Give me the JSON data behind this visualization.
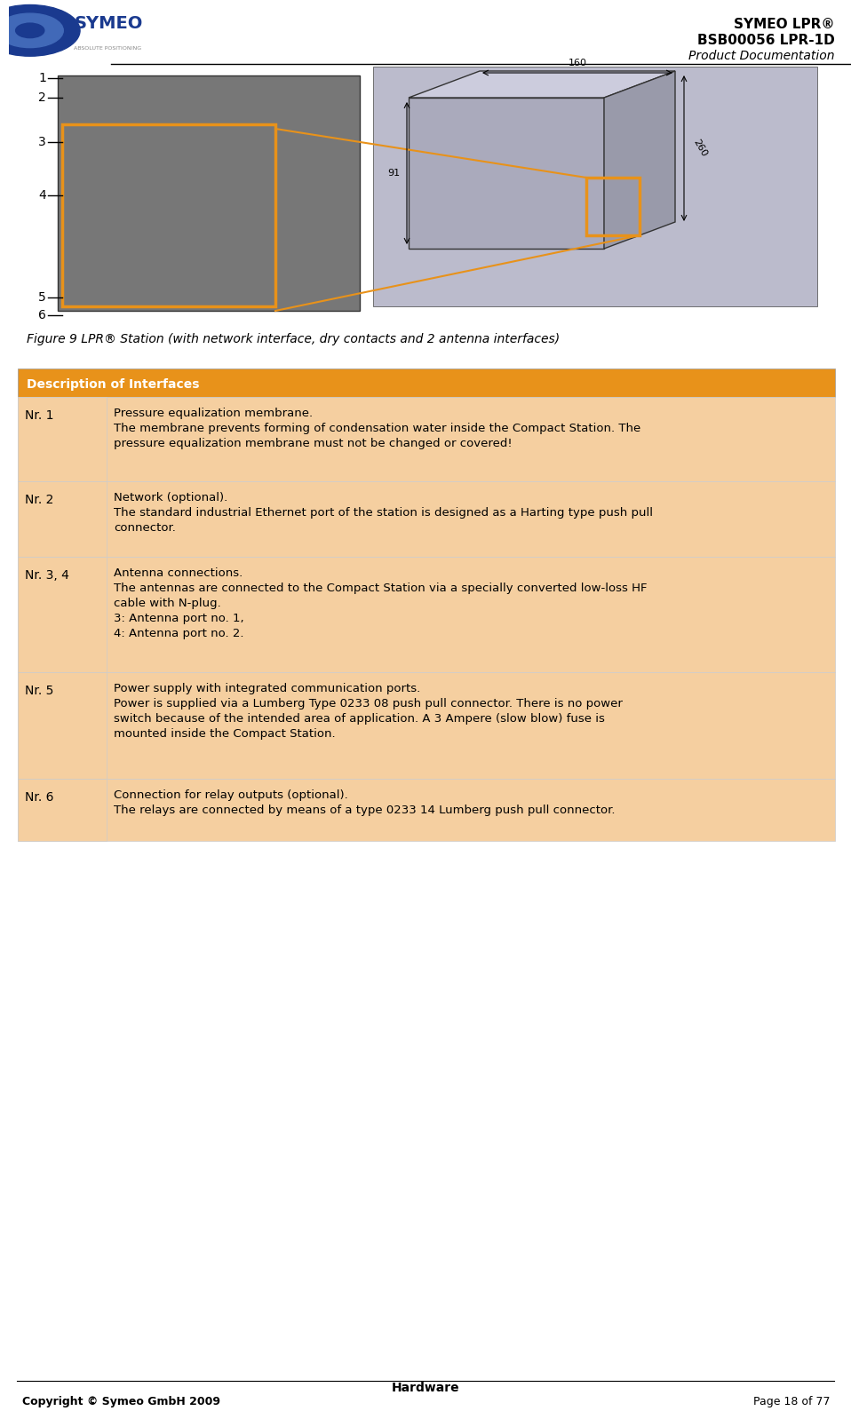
{
  "title_line1": "SYMEO LPR®",
  "title_line2": "BSB00056 LPR-1D",
  "title_line3": "Product Documentation",
  "footer_center": "Hardware",
  "footer_left": "Copyright © Symeo GmbH 2009",
  "footer_right": "Page 18 of 77",
  "figure_caption": "Figure 9 LPR® Station (with network interface, dry contacts and 2 antenna interfaces)",
  "table_header": "Description of Interfaces",
  "table_header_bg": "#E8921A",
  "table_header_text": "#FFFFFF",
  "table_row_bg_light": "#F5CFA0",
  "table_row_bg_dark": "#EDB87A",
  "table_border": "#CCCCCC",
  "bg_color": "#FFFFFF",
  "rows": [
    {
      "nr": "Nr. 1",
      "text": "Pressure equalization membrane.\nThe membrane prevents forming of condensation water inside the Compact Station. The\npressure equalization membrane must not be changed or covered!"
    },
    {
      "nr": "Nr. 2",
      "text": "Network (optional).\nThe standard industrial Ethernet port of the station is designed as a Harting type push pull\nconnector."
    },
    {
      "nr": "Nr. 3, 4",
      "text": "Antenna connections.\nThe antennas are connected to the Compact Station via a specially converted low-loss HF\ncable with N-plug.\n3: Antenna port no. 1,\n4: Antenna port no. 2."
    },
    {
      "nr": "Nr. 5",
      "text": "Power supply with integrated communication ports.\nPower is supplied via a Lumberg Type 0233 08 push pull connector. There is no power\nswitch because of the intended area of application. A 3 Ampere (slow blow) fuse is\nmounted inside the Compact Station."
    },
    {
      "nr": "Nr. 6",
      "text": "Connection for relay outputs (optional).\nThe relays are connected by means of a type 0233 14 Lumberg push pull connector."
    }
  ],
  "side_labels": [
    "1",
    "2",
    "3",
    "4",
    "5",
    "6"
  ],
  "image_placeholder_color": "#888888",
  "orange_border_color": "#E8921A",
  "header_line_color": "#000000"
}
